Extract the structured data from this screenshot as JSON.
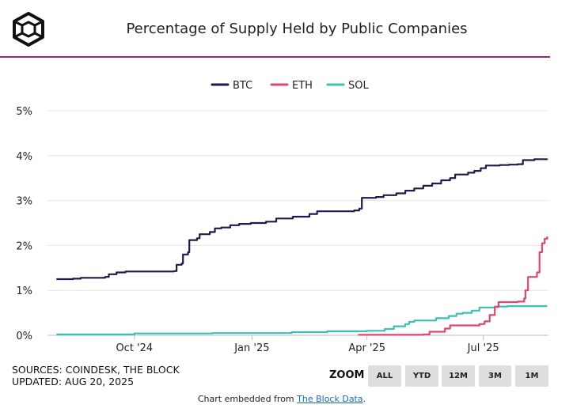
{
  "header": {
    "title": "Percentage of Supply Held by Public Companies"
  },
  "chart_data": {
    "type": "line",
    "title": "Percentage of Supply Held by Public Companies",
    "xlabel": "",
    "ylabel": "",
    "x_ticks": [
      "Oct '24",
      "Jan '25",
      "Apr '25",
      "Jul '25"
    ],
    "y_ticks": [
      "0%",
      "1%",
      "2%",
      "3%",
      "4%",
      "5%"
    ],
    "ylim": [
      0,
      5
    ],
    "grid": "horizontal",
    "legend_position": "top-center",
    "series": [
      {
        "name": "BTC",
        "color": "#1e1b4b",
        "points": [
          [
            "2024-08-01",
            1.25
          ],
          [
            "2024-08-14",
            1.26
          ],
          [
            "2024-08-20",
            1.28
          ],
          [
            "2024-09-08",
            1.3
          ],
          [
            "2024-09-11",
            1.36
          ],
          [
            "2024-09-17",
            1.4
          ],
          [
            "2024-09-24",
            1.42
          ],
          [
            "2024-11-01",
            1.43
          ],
          [
            "2024-11-03",
            1.57
          ],
          [
            "2024-11-07",
            1.6
          ],
          [
            "2024-11-08",
            1.8
          ],
          [
            "2024-11-12",
            1.85
          ],
          [
            "2024-11-13",
            2.12
          ],
          [
            "2024-11-19",
            2.16
          ],
          [
            "2024-11-21",
            2.25
          ],
          [
            "2024-11-29",
            2.3
          ],
          [
            "2024-12-03",
            2.38
          ],
          [
            "2024-12-08",
            2.4
          ],
          [
            "2024-12-15",
            2.45
          ],
          [
            "2024-12-22",
            2.48
          ],
          [
            "2024-12-31",
            2.5
          ],
          [
            "2025-01-12",
            2.53
          ],
          [
            "2025-01-20",
            2.6
          ],
          [
            "2025-02-02",
            2.64
          ],
          [
            "2025-02-15",
            2.7
          ],
          [
            "2025-02-21",
            2.76
          ],
          [
            "2025-03-22",
            2.78
          ],
          [
            "2025-03-26",
            2.82
          ],
          [
            "2025-03-28",
            3.06
          ],
          [
            "2025-04-08",
            3.08
          ],
          [
            "2025-04-14",
            3.12
          ],
          [
            "2025-04-24",
            3.16
          ],
          [
            "2025-05-01",
            3.22
          ],
          [
            "2025-05-08",
            3.27
          ],
          [
            "2025-05-15",
            3.33
          ],
          [
            "2025-05-22",
            3.38
          ],
          [
            "2025-05-29",
            3.45
          ],
          [
            "2025-06-05",
            3.5
          ],
          [
            "2025-06-09",
            3.58
          ],
          [
            "2025-06-19",
            3.62
          ],
          [
            "2025-06-24",
            3.66
          ],
          [
            "2025-06-29",
            3.72
          ],
          [
            "2025-07-03",
            3.78
          ],
          [
            "2025-07-14",
            3.79
          ],
          [
            "2025-07-21",
            3.8
          ],
          [
            "2025-07-28",
            3.81
          ],
          [
            "2025-08-01",
            3.9
          ],
          [
            "2025-08-10",
            3.92
          ],
          [
            "2025-08-20",
            3.93
          ]
        ]
      },
      {
        "name": "ETH",
        "color": "#e0476d",
        "points": [
          [
            "2025-03-25",
            0.01
          ],
          [
            "2025-05-15",
            0.02
          ],
          [
            "2025-05-20",
            0.08
          ],
          [
            "2025-06-01",
            0.15
          ],
          [
            "2025-06-05",
            0.22
          ],
          [
            "2025-06-28",
            0.25
          ],
          [
            "2025-07-02",
            0.31
          ],
          [
            "2025-07-06",
            0.45
          ],
          [
            "2025-07-10",
            0.63
          ],
          [
            "2025-07-13",
            0.74
          ],
          [
            "2025-07-28",
            0.75
          ],
          [
            "2025-08-02",
            0.82
          ],
          [
            "2025-08-03",
            1.0
          ],
          [
            "2025-08-05",
            1.3
          ],
          [
            "2025-08-12",
            1.4
          ],
          [
            "2025-08-14",
            1.85
          ],
          [
            "2025-08-16",
            2.05
          ],
          [
            "2025-08-18",
            2.15
          ],
          [
            "2025-08-20",
            2.2
          ]
        ]
      },
      {
        "name": "SOL",
        "color": "#3cbfb4",
        "points": [
          [
            "2024-08-01",
            0.02
          ],
          [
            "2024-10-01",
            0.04
          ],
          [
            "2024-12-01",
            0.05
          ],
          [
            "2025-02-01",
            0.07
          ],
          [
            "2025-03-01",
            0.09
          ],
          [
            "2025-04-01",
            0.1
          ],
          [
            "2025-04-15",
            0.14
          ],
          [
            "2025-04-22",
            0.2
          ],
          [
            "2025-05-01",
            0.25
          ],
          [
            "2025-05-04",
            0.3
          ],
          [
            "2025-05-08",
            0.33
          ],
          [
            "2025-05-25",
            0.38
          ],
          [
            "2025-06-04",
            0.43
          ],
          [
            "2025-06-10",
            0.48
          ],
          [
            "2025-06-15",
            0.5
          ],
          [
            "2025-06-22",
            0.55
          ],
          [
            "2025-06-28",
            0.62
          ],
          [
            "2025-07-10",
            0.64
          ],
          [
            "2025-07-20",
            0.65
          ],
          [
            "2025-08-20",
            0.65
          ]
        ]
      }
    ]
  },
  "footer": {
    "sources": "SOURCES: COINDESK, THE BLOCK",
    "updated": "UPDATED: AUG 20, 2025",
    "zoom_label": "ZOOM",
    "zoom_buttons": [
      "ALL",
      "YTD",
      "12M",
      "3M",
      "1M"
    ],
    "embed_prefix": "Chart embedded from ",
    "embed_link": "The Block Data",
    "embed_suffix": "."
  }
}
